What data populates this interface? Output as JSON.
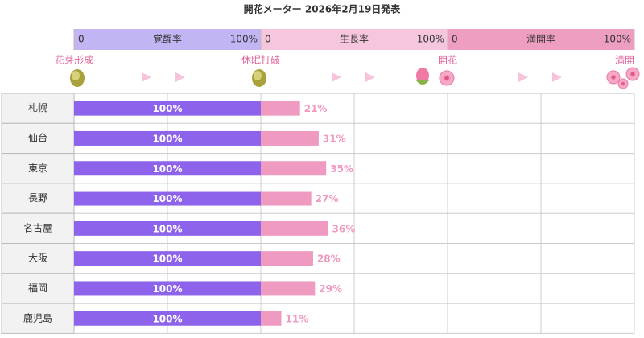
{
  "chart_data": {
    "type": "bar",
    "title": "開花メーター 2026年2月19日発表",
    "categories": [
      "札幌",
      "仙台",
      "東京",
      "長野",
      "名古屋",
      "大阪",
      "福岡",
      "鹿児島"
    ],
    "milestones": [
      "花芽形成",
      "休眠打破",
      "開花",
      "満開"
    ],
    "xlim": [
      0,
      100
    ],
    "xticks": [
      0,
      {
        "value": 100,
        "label": "100%"
      }
    ],
    "series": [
      {
        "name": "覚醒率",
        "color": "#8d63ec",
        "header_color": "#c3b5f4",
        "value_label_position": "inside",
        "values": [
          100,
          100,
          100,
          100,
          100,
          100,
          100,
          100
        ],
        "value_labels": [
          "100%",
          "100%",
          "100%",
          "100%",
          "100%",
          "100%",
          "100%",
          "100%"
        ]
      },
      {
        "name": "生長率",
        "color": "#ef9ac0",
        "header_color": "#f5c6dd",
        "value_label_position": "outside",
        "values": [
          21,
          31,
          35,
          27,
          36,
          28,
          29,
          11
        ],
        "value_labels": [
          "21%",
          "31%",
          "35%",
          "27%",
          "36%",
          "28%",
          "29%",
          "11%"
        ]
      },
      {
        "name": "満開率",
        "color": "#ef9ac0",
        "header_color": "#ee9fc1",
        "value_label_position": "outside",
        "values": [
          null,
          null,
          null,
          null,
          null,
          null,
          null,
          null
        ]
      }
    ]
  }
}
